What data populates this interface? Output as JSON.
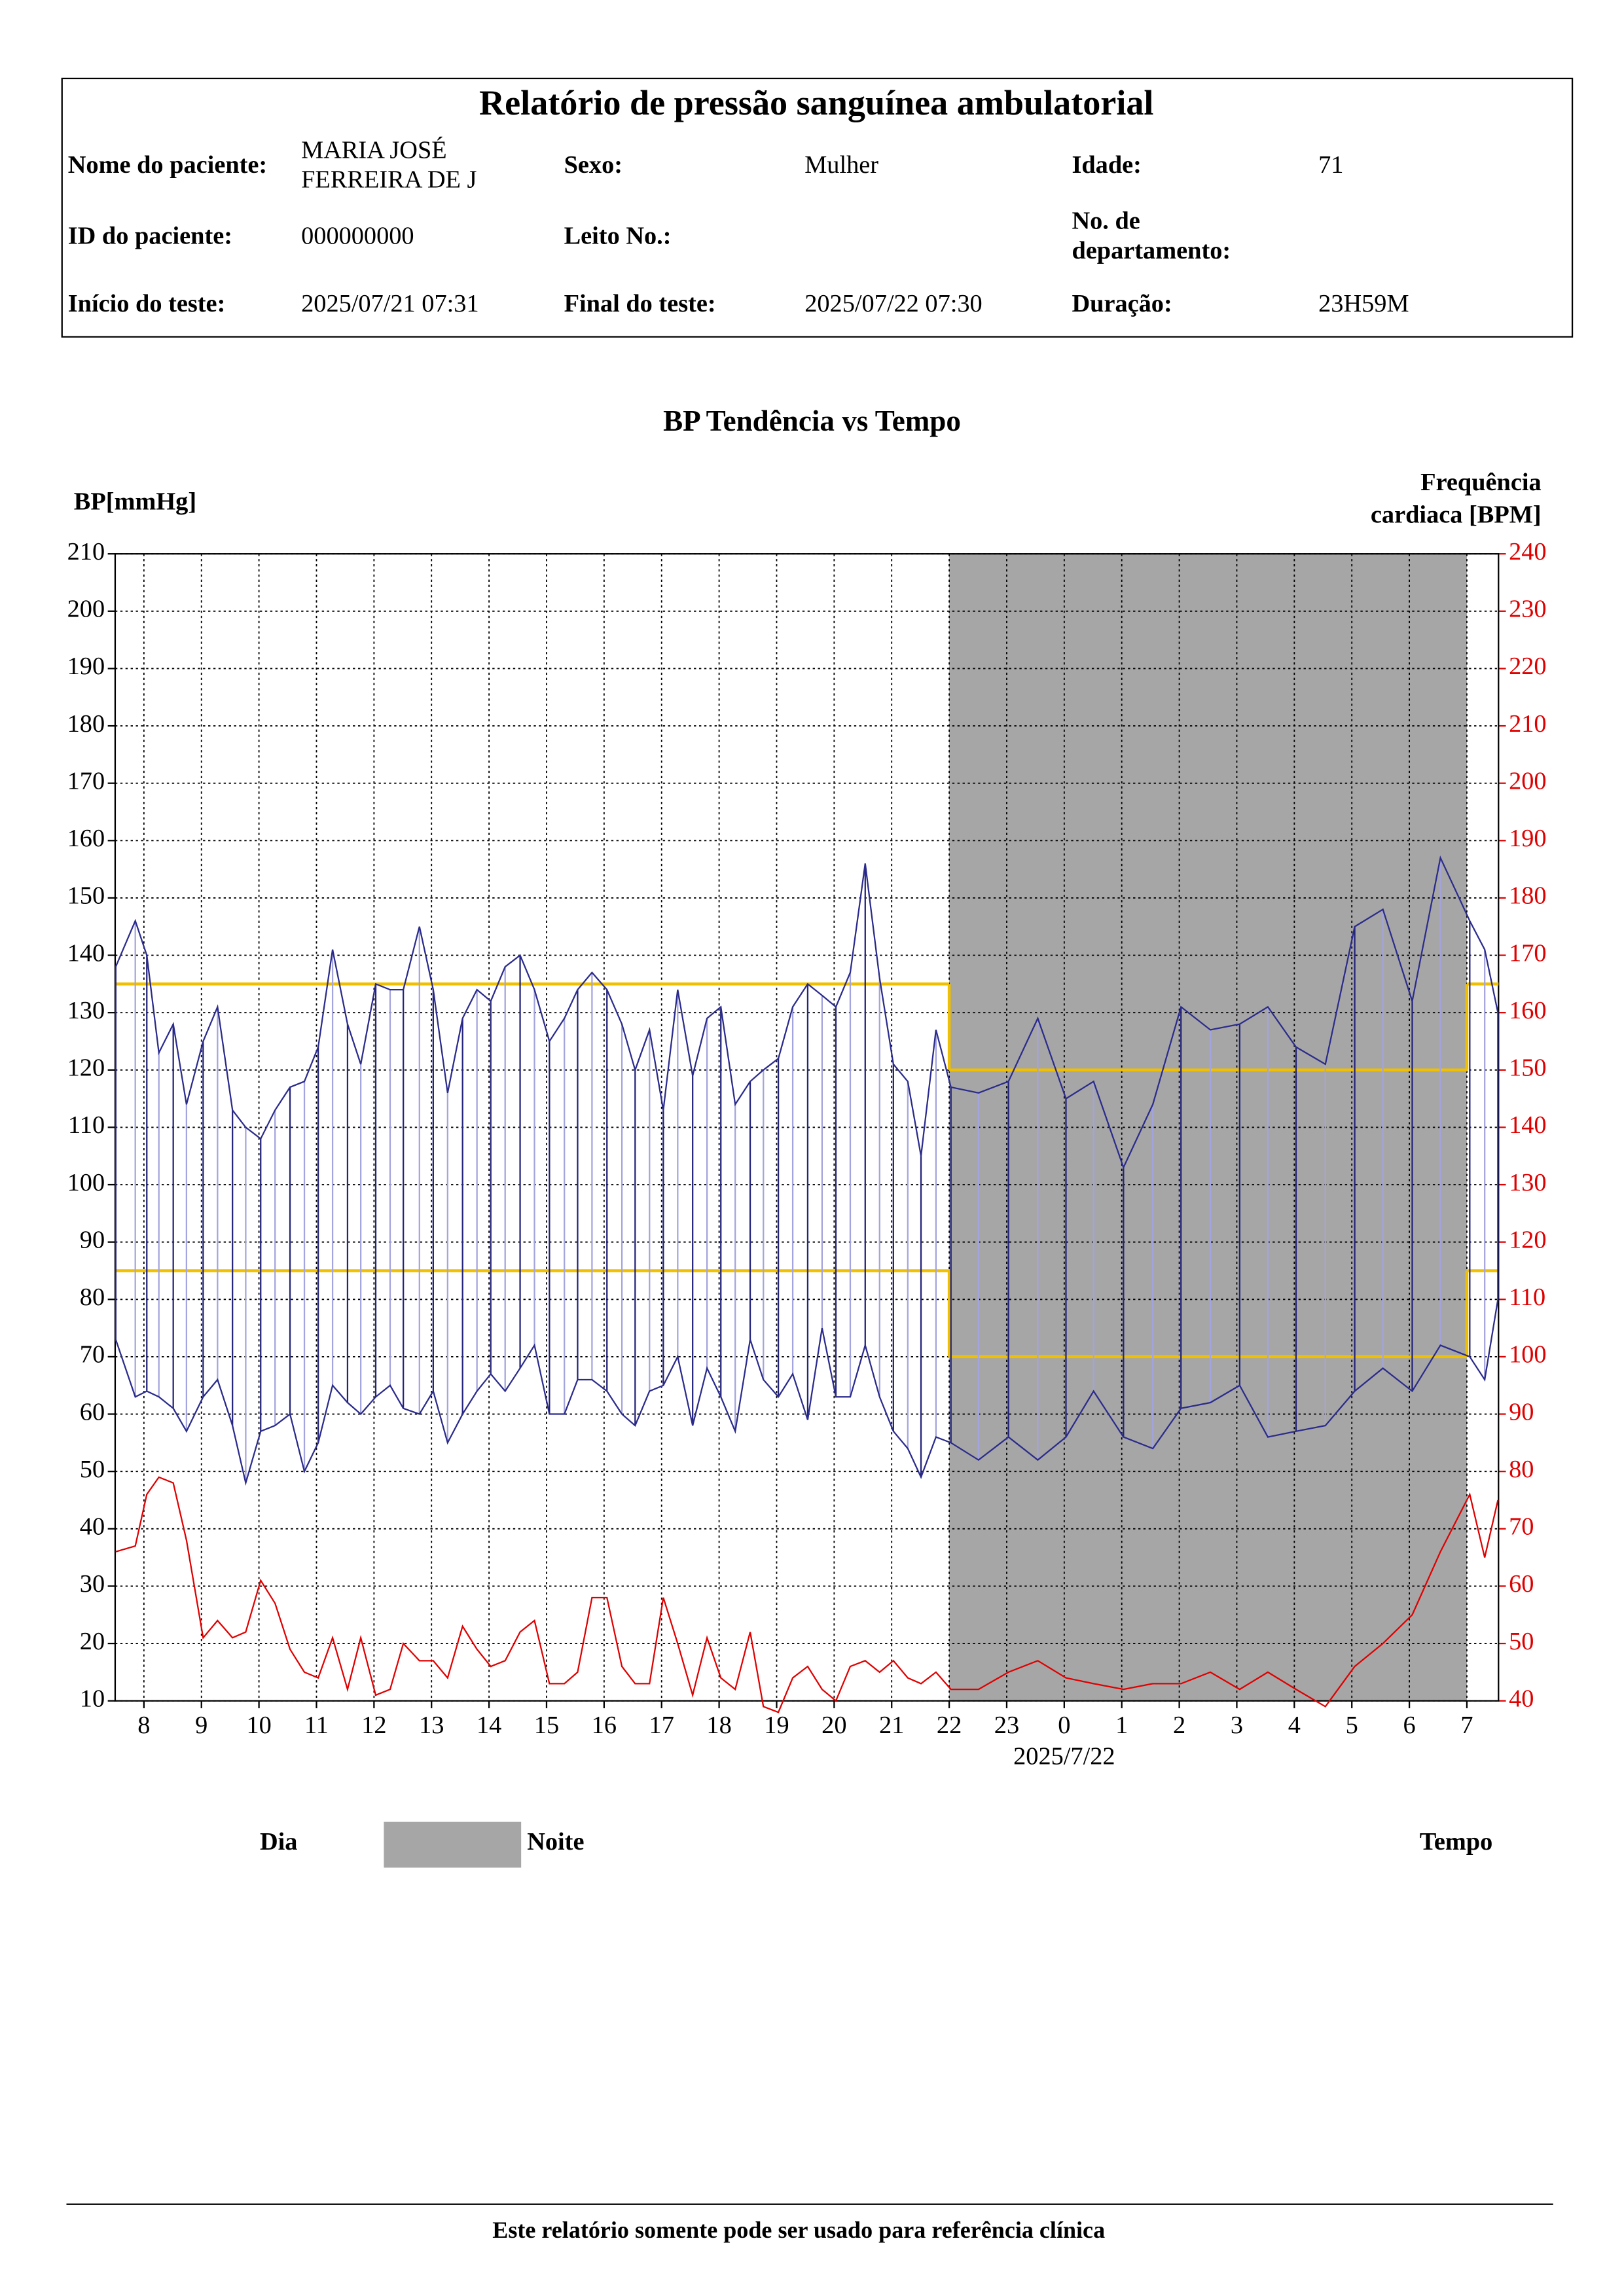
{
  "header": {
    "title": "Relatório de pressão sanguínea ambulatorial",
    "fields": [
      {
        "label": [
          "Nome do paciente:"
        ],
        "value": [
          "MARIA JOSÉ",
          "FERREIRA DE J"
        ]
      },
      {
        "label": [
          "Sexo:"
        ],
        "value": [
          "Mulher"
        ]
      },
      {
        "label": [
          "Idade:"
        ],
        "value": [
          "71"
        ]
      },
      {
        "label": [
          "ID do paciente:"
        ],
        "value": [
          "000000000"
        ]
      },
      {
        "label": [
          "Leito No.:"
        ]
      },
      {
        "label": [
          "No. de",
          "departamento:"
        ]
      },
      {
        "label": [
          "Início do teste:"
        ],
        "value": [
          "2025/07/21 07:31"
        ]
      },
      {
        "label": [
          "Final do teste:"
        ],
        "value": [
          "2025/07/22 07:30"
        ]
      },
      {
        "label": [
          "Duração:"
        ],
        "value": [
          "23H59M"
        ]
      }
    ]
  },
  "chart_data": {
    "type": "line",
    "title": "BP Tendência vs Tempo",
    "ylabel": "BP[mmHg]",
    "y2label": [
      "Frequência",
      "cardiaca [BPM]"
    ],
    "xlabel": "Tempo",
    "date_label": {
      "text": "2025/7/22",
      "value": 24
    },
    "x": [
      7.51,
      7.85,
      8.05,
      8.26,
      8.51,
      8.74,
      9.03,
      9.28,
      9.54,
      9.77,
      10.03,
      10.28,
      10.54,
      10.79,
      11.03,
      11.28,
      11.54,
      11.77,
      12.03,
      12.28,
      12.51,
      12.79,
      13.03,
      13.28,
      13.54,
      13.79,
      14.03,
      14.28,
      14.54,
      14.79,
      15.05,
      15.31,
      15.54,
      15.79,
      16.05,
      16.31,
      16.54,
      16.79,
      17.03,
      17.28,
      17.54,
      17.79,
      18.03,
      18.28,
      18.54,
      18.77,
      19.03,
      19.28,
      19.54,
      19.79,
      20.03,
      20.28,
      20.54,
      20.79,
      21.03,
      21.28,
      21.51,
      21.77,
      22.03,
      22.51,
      23.03,
      23.54,
      24.03,
      24.51,
      25.03,
      25.54,
      26.03,
      26.54,
      27.05,
      27.54,
      28.03,
      28.54,
      29.05,
      29.54,
      30.05,
      30.54,
      31.05,
      31.31,
      31.54
    ],
    "series": [
      {
        "color": "#2b2b8c",
        "values": [
          138,
          146,
          140,
          123,
          128,
          114,
          125,
          131,
          113,
          110,
          108,
          113,
          117,
          118,
          124,
          141,
          128,
          121,
          135,
          134,
          134,
          145,
          134,
          116,
          129,
          134,
          132,
          138,
          140,
          134,
          125,
          129,
          134,
          137,
          134,
          128,
          120,
          127,
          113,
          134,
          119,
          129,
          131,
          114,
          118,
          120,
          122,
          131,
          135,
          133,
          131,
          137,
          156,
          136,
          121,
          118,
          105,
          127,
          117,
          116,
          118,
          129,
          115,
          118,
          103,
          114,
          131,
          127,
          128,
          131,
          124,
          121,
          145,
          148,
          132,
          157,
          146,
          141,
          130
        ]
      },
      {
        "color": "#2b2b8c",
        "values": [
          73,
          63,
          64,
          63,
          61,
          57,
          63,
          66,
          58,
          48,
          57,
          58,
          60,
          50,
          55,
          65,
          62,
          60,
          63,
          65,
          61,
          60,
          64,
          55,
          60,
          64,
          67,
          64,
          68,
          72,
          60,
          60,
          66,
          66,
          64,
          60,
          58,
          64,
          65,
          70,
          58,
          68,
          63,
          57,
          73,
          66,
          63,
          67,
          59,
          75,
          63,
          63,
          72,
          63,
          57,
          54,
          49,
          56,
          55,
          52,
          56,
          52,
          56,
          64,
          56,
          54,
          61,
          62,
          65,
          56,
          57,
          58,
          64,
          68,
          64,
          72,
          70,
          66,
          80
        ]
      },
      {
        "color": "#e00000",
        "axis": "y2",
        "values": [
          66,
          67,
          76,
          79,
          78,
          68,
          51,
          54,
          51,
          52,
          61,
          57,
          49,
          45,
          44,
          51,
          42,
          51,
          41,
          42,
          50,
          47,
          47,
          44,
          53,
          49,
          46,
          47,
          52,
          54,
          43,
          43,
          45,
          58,
          58,
          46,
          43,
          43,
          58,
          50,
          41,
          51,
          44,
          42,
          52,
          39,
          38,
          44,
          46,
          42,
          40,
          46,
          47,
          45,
          47,
          44,
          43,
          45,
          42,
          42,
          45,
          47,
          44,
          43,
          42,
          43,
          43,
          45,
          42,
          45,
          42,
          39,
          46,
          50,
          55,
          66,
          76,
          65,
          75
        ]
      }
    ],
    "connector_colors": [
      "#23237a",
      "#a4a4de"
    ],
    "xlim": [
      7.5,
      31.55
    ],
    "xticks": [
      8,
      9,
      10,
      11,
      12,
      13,
      14,
      15,
      16,
      17,
      18,
      19,
      20,
      21,
      22,
      23,
      {
        "value": 24,
        "label": "0"
      },
      {
        "value": 25,
        "label": "1"
      },
      {
        "value": 26,
        "label": "2"
      },
      {
        "value": 27,
        "label": "3"
      },
      {
        "value": 28,
        "label": "4"
      },
      {
        "value": 29,
        "label": "5"
      },
      {
        "value": 30,
        "label": "6"
      },
      {
        "value": 31,
        "label": "7"
      }
    ],
    "ylim": [
      10,
      210
    ],
    "yticks": [
      10,
      20,
      30,
      40,
      50,
      60,
      70,
      80,
      90,
      100,
      110,
      120,
      130,
      140,
      150,
      160,
      170,
      180,
      190,
      200,
      210
    ],
    "y2lim": [
      40,
      240
    ],
    "y2ticks": [
      40,
      50,
      60,
      70,
      80,
      90,
      100,
      110,
      120,
      130,
      140,
      150,
      160,
      170,
      180,
      190,
      200,
      210,
      220,
      230,
      240
    ],
    "y2color": "#e00000",
    "grid": true,
    "day_label": "Dia",
    "night": {
      "label": "Noite",
      "start": 22,
      "end": 31,
      "color": "#a6a6a6"
    },
    "limits": {
      "color": "#f0c000",
      "segments": [
        {
          "start": 7.5,
          "end": 22,
          "values": [
            135,
            85
          ]
        },
        {
          "start": 22,
          "end": 31,
          "values": [
            120,
            70
          ]
        },
        {
          "start": 31,
          "end": 31.55,
          "values": [
            135,
            85
          ]
        }
      ]
    }
  },
  "footer": "Este relatório somente pode ser usado para referência clínica"
}
